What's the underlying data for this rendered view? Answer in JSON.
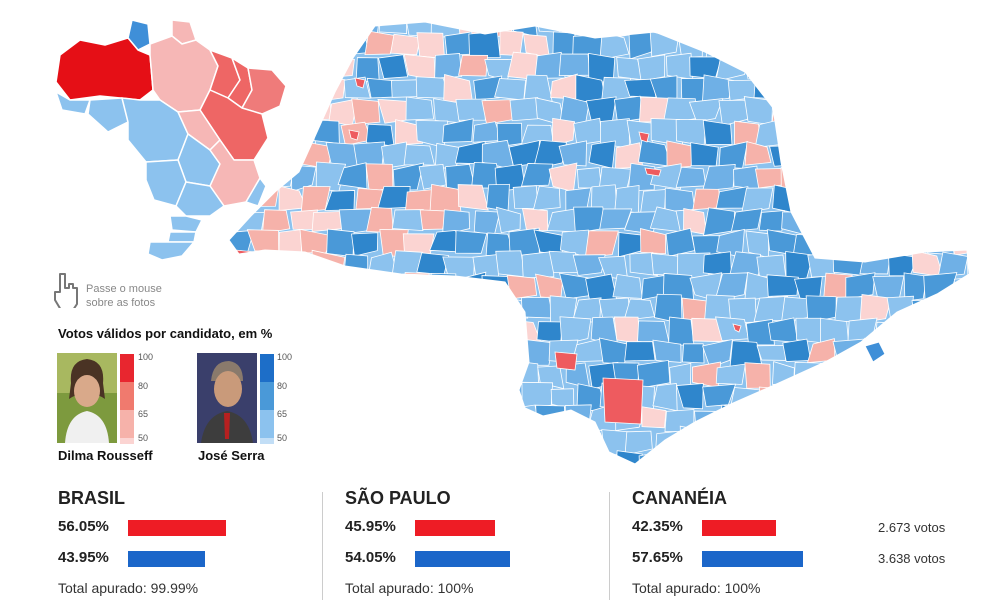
{
  "hint": {
    "line1": "Passe o mouse",
    "line2": "sobre as fotos",
    "icon": "hand-pointer-icon"
  },
  "legend": {
    "title": "Votos válidos por candidato, em %",
    "scale_ticks": [
      "100",
      "80",
      "65",
      "50"
    ],
    "dilma_colors": [
      "#e8262f",
      "#f07a6e",
      "#f6b2aa",
      "#fbd4d2"
    ],
    "serra_colors": [
      "#1d6ec8",
      "#4a99d8",
      "#8cc2ee",
      "#c2def6"
    ]
  },
  "candidates": [
    {
      "name": "Dilma Rousseff",
      "color": "#ee1c25"
    },
    {
      "name": "José Serra",
      "color": "#1b66c9"
    }
  ],
  "results": [
    {
      "region": "BRASIL",
      "dilma_pct": "56.05%",
      "dilma_value": 56.05,
      "serra_pct": "43.95%",
      "serra_value": 43.95,
      "total": "Total apurado: 99.99%"
    },
    {
      "region": "SÃO PAULO",
      "dilma_pct": "45.95%",
      "dilma_value": 45.95,
      "serra_pct": "54.05%",
      "serra_value": 54.05,
      "total": "Total apurado: 100%"
    },
    {
      "region": "CANANÉIA",
      "dilma_pct": "42.35%",
      "dilma_value": 42.35,
      "serra_pct": "57.65%",
      "serra_value": 57.65,
      "total": "Total apurado: 100%",
      "dilma_votes": "2.673 votos",
      "serra_votes": "3.638 votos"
    }
  ]
}
